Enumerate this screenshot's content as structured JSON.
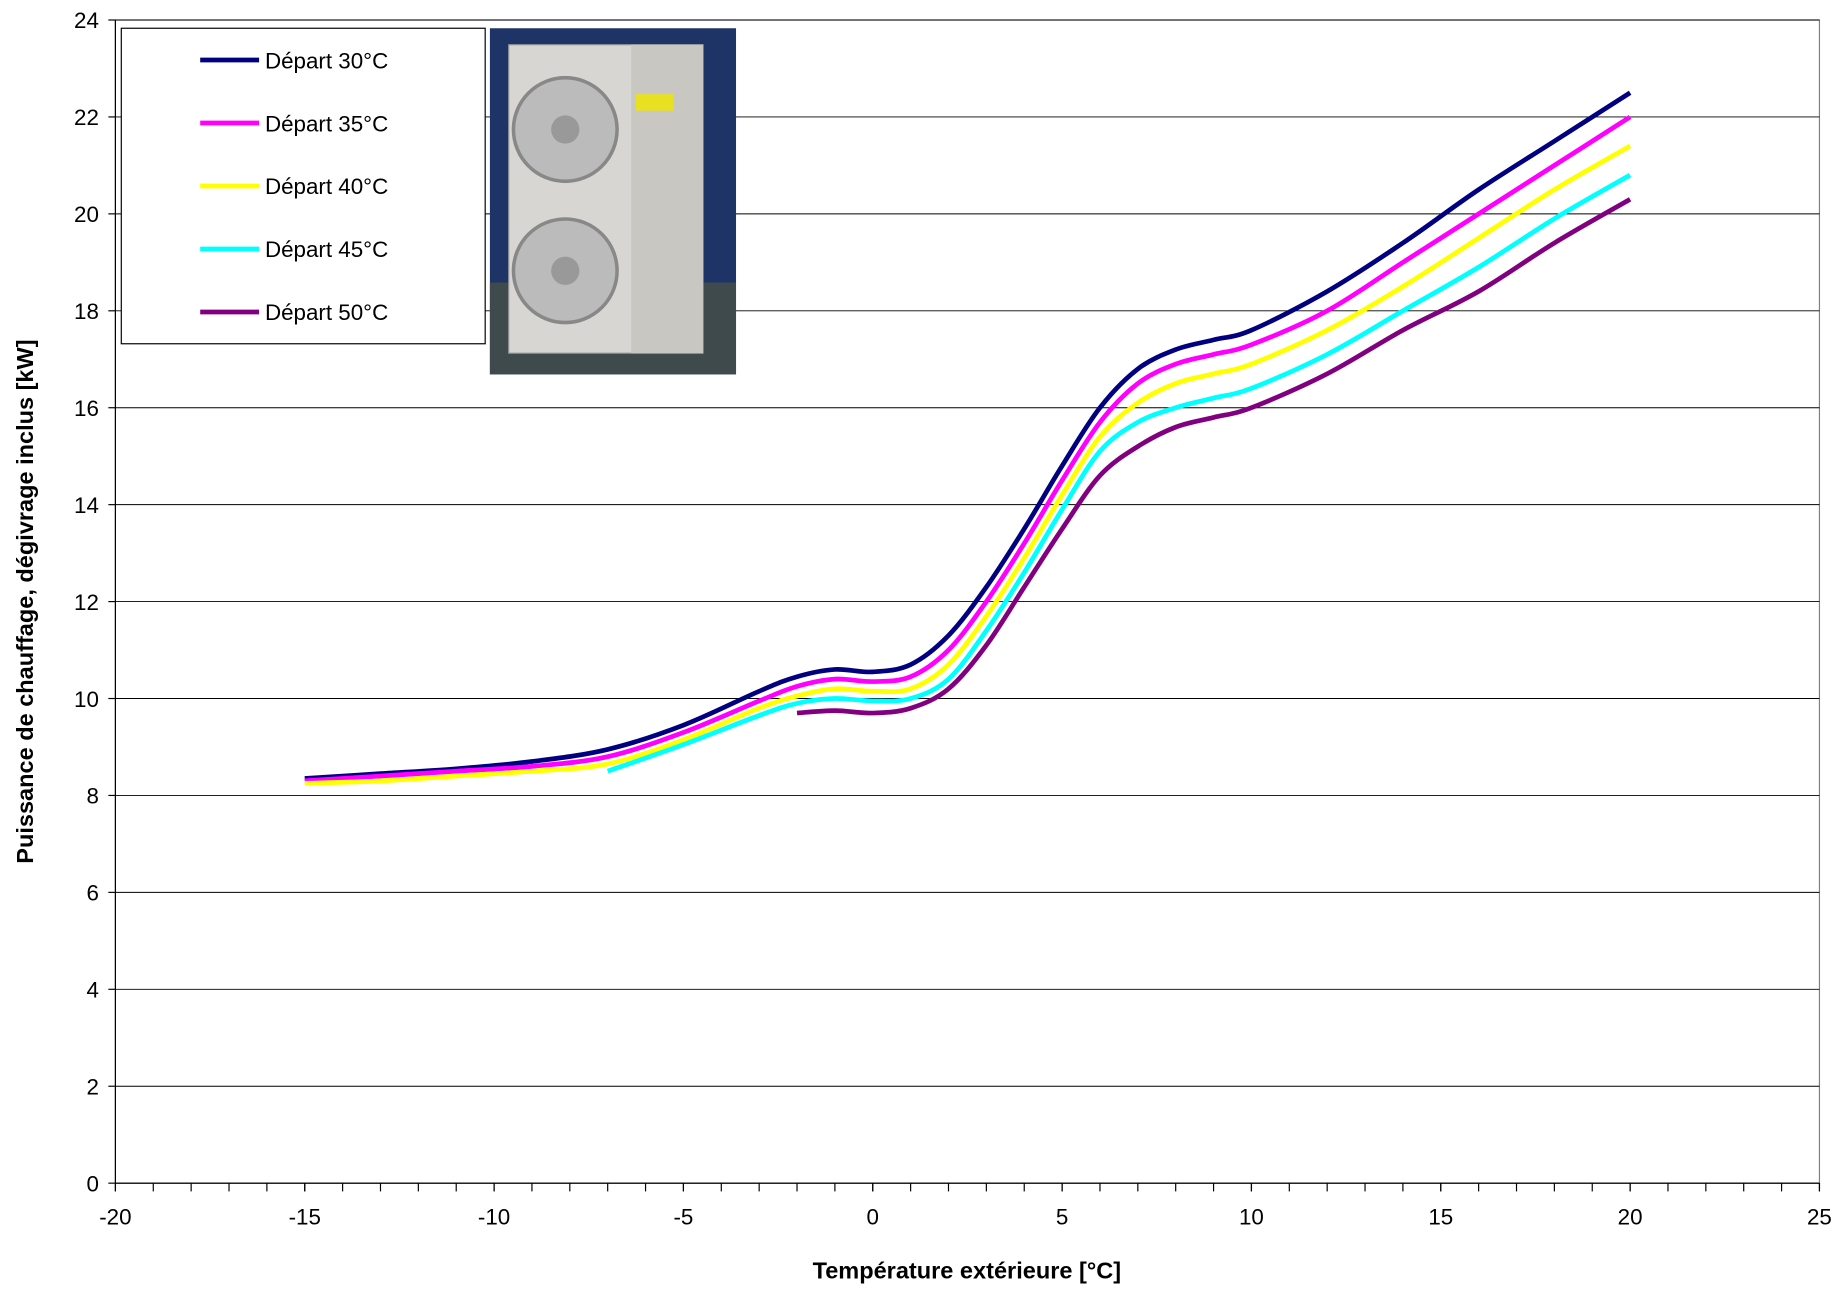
{
  "chart_data": {
    "type": "line",
    "x_label": "Température extérieure [°C]",
    "y_label": "Puissance de chauffage, dégivrage inclus [kW]",
    "x": [
      -15,
      -13,
      -11,
      -9,
      -7,
      -5,
      -3,
      -2,
      -1,
      0,
      1,
      2,
      3,
      4,
      5,
      6,
      7,
      8,
      9,
      10,
      12,
      14,
      16,
      18,
      20
    ],
    "series": [
      {
        "name": "Départ 30°C",
        "color": "#000080",
        "values": [
          8.35,
          8.45,
          8.55,
          8.7,
          8.95,
          9.45,
          10.15,
          10.45,
          10.6,
          10.55,
          10.7,
          11.3,
          12.3,
          13.5,
          14.8,
          16.0,
          16.8,
          17.2,
          17.4,
          17.6,
          18.4,
          19.4,
          20.5,
          21.5,
          22.5
        ]
      },
      {
        "name": "Départ 35°C",
        "color": "#ff00ff",
        "values": [
          8.3,
          8.4,
          8.5,
          8.6,
          8.8,
          9.3,
          9.95,
          10.25,
          10.4,
          10.35,
          10.45,
          11.0,
          12.0,
          13.2,
          14.5,
          15.7,
          16.5,
          16.9,
          17.1,
          17.3,
          18.0,
          19.0,
          20.0,
          21.0,
          22.0
        ]
      },
      {
        "name": "Départ 40°C",
        "color": "#ffff00",
        "values": [
          8.25,
          8.3,
          8.4,
          8.5,
          8.65,
          9.15,
          9.8,
          10.05,
          10.2,
          10.15,
          10.2,
          10.7,
          11.7,
          12.9,
          14.2,
          15.4,
          16.1,
          16.5,
          16.7,
          16.9,
          17.6,
          18.5,
          19.5,
          20.5,
          21.4
        ]
      },
      {
        "name": "Départ 45°C",
        "color": "#00ffff",
        "values": [
          null,
          null,
          null,
          null,
          8.5,
          9.05,
          9.65,
          9.9,
          10.0,
          9.95,
          10.0,
          10.4,
          11.4,
          12.6,
          13.9,
          15.1,
          15.7,
          16.0,
          16.2,
          16.4,
          17.1,
          18.0,
          18.9,
          19.9,
          20.8
        ]
      },
      {
        "name": "Départ 50°C",
        "color": "#800080",
        "values": [
          null,
          null,
          null,
          null,
          null,
          null,
          null,
          9.7,
          9.75,
          9.7,
          9.8,
          10.2,
          11.1,
          12.3,
          13.5,
          14.6,
          15.2,
          15.6,
          15.8,
          16.0,
          16.7,
          17.6,
          18.4,
          19.4,
          20.3
        ]
      }
    ],
    "xlim": [
      -20,
      25
    ],
    "xticks": [
      -20,
      -15,
      -10,
      -5,
      0,
      5,
      10,
      15,
      20,
      25
    ],
    "ylim": [
      0,
      24
    ],
    "yticks": [
      0,
      2,
      4,
      6,
      8,
      10,
      12,
      14,
      16,
      18,
      20,
      22,
      24
    ],
    "grid": true,
    "legend": "top-left"
  }
}
